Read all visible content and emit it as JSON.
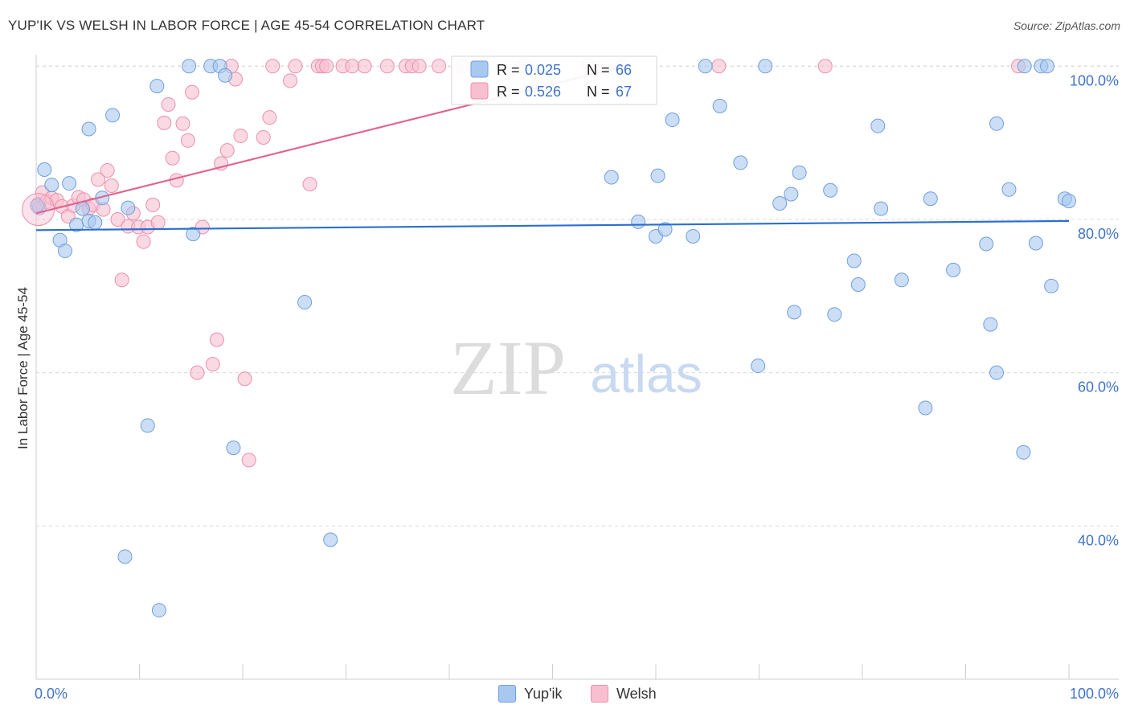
{
  "header": {
    "title": "YUP'IK VS WELSH IN LABOR FORCE | AGE 45-54 CORRELATION CHART",
    "source": "Source: ZipAtlas.com"
  },
  "watermark": {
    "zip": "ZIP",
    "atlas": "atlas"
  },
  "colors": {
    "yupik_fill": "#a9c8f0",
    "yupik_stroke": "#6f9fdc",
    "yupik_line": "#2a6fce",
    "welsh_fill": "#f8bfd0",
    "welsh_stroke": "#ec8fab",
    "welsh_line": "#e06690",
    "grid": "#d8d8d8",
    "axis_text": "#3f74c8"
  },
  "chart_data": {
    "type": "scatter",
    "title": "YUP'IK VS WELSH IN LABOR FORCE | AGE 45-54 CORRELATION CHART",
    "xlabel": "",
    "ylabel": "In Labor Force | Age 45-54",
    "xlim": [
      0,
      100
    ],
    "ylim": [
      20,
      101.5
    ],
    "x_tick_labels": [
      "0.0%",
      "100.0%"
    ],
    "y_ticks": [
      40,
      60,
      80,
      100
    ],
    "y_tick_labels": [
      "40.0%",
      "60.0%",
      "80.0%",
      "100.0%"
    ],
    "grid": true,
    "legend_stats": [
      {
        "r_label": "R =",
        "r_value": "0.025",
        "n_label": "N =",
        "n_value": "66"
      },
      {
        "r_label": "R =",
        "r_value": "0.526",
        "n_label": "N =",
        "n_value": "67"
      }
    ],
    "series": [
      {
        "name": "Yup'ik",
        "trend": {
          "x": [
            0,
            100
          ],
          "y": [
            78.6,
            79.8
          ]
        },
        "points": [
          {
            "x": 0.3,
            "y": 81.5
          },
          {
            "x": 0.8,
            "y": 86.5
          },
          {
            "x": 1.5,
            "y": 84.5
          },
          {
            "x": 2.3,
            "y": 77.3
          },
          {
            "x": 2.8,
            "y": 75.9
          },
          {
            "x": 3.2,
            "y": 84.7
          },
          {
            "x": 3.9,
            "y": 79.3
          },
          {
            "x": 4.5,
            "y": 81.4
          },
          {
            "x": 5.1,
            "y": 79.8
          },
          {
            "x": 5.7,
            "y": 79.6
          },
          {
            "x": 5.1,
            "y": 91.8
          },
          {
            "x": 6.4,
            "y": 82.8
          },
          {
            "x": 7.4,
            "y": 93.6
          },
          {
            "x": 8.6,
            "y": 36.0
          },
          {
            "x": 8.9,
            "y": 81.5
          },
          {
            "x": 10.8,
            "y": 53.1
          },
          {
            "x": 11.7,
            "y": 97.4
          },
          {
            "x": 11.9,
            "y": 29.0
          },
          {
            "x": 14.8,
            "y": 100.0
          },
          {
            "x": 15.2,
            "y": 78.1
          },
          {
            "x": 16.9,
            "y": 100.0
          },
          {
            "x": 17.8,
            "y": 100.0
          },
          {
            "x": 18.3,
            "y": 98.8
          },
          {
            "x": 19.1,
            "y": 50.2
          },
          {
            "x": 26.0,
            "y": 69.2
          },
          {
            "x": 28.5,
            "y": 38.2
          },
          {
            "x": 55.7,
            "y": 85.5
          },
          {
            "x": 58.3,
            "y": 79.7
          },
          {
            "x": 60.0,
            "y": 77.8
          },
          {
            "x": 60.2,
            "y": 85.7
          },
          {
            "x": 60.9,
            "y": 78.7
          },
          {
            "x": 61.6,
            "y": 93.0
          },
          {
            "x": 63.6,
            "y": 77.8
          },
          {
            "x": 64.8,
            "y": 100.0
          },
          {
            "x": 66.2,
            "y": 94.8
          },
          {
            "x": 68.2,
            "y": 87.4
          },
          {
            "x": 69.9,
            "y": 60.9
          },
          {
            "x": 70.6,
            "y": 100.0
          },
          {
            "x": 72.0,
            "y": 82.1
          },
          {
            "x": 73.1,
            "y": 83.3
          },
          {
            "x": 73.4,
            "y": 67.9
          },
          {
            "x": 73.9,
            "y": 86.1
          },
          {
            "x": 76.9,
            "y": 83.8
          },
          {
            "x": 77.3,
            "y": 67.6
          },
          {
            "x": 79.2,
            "y": 74.6
          },
          {
            "x": 79.6,
            "y": 71.5
          },
          {
            "x": 81.8,
            "y": 81.4
          },
          {
            "x": 81.5,
            "y": 92.2
          },
          {
            "x": 83.8,
            "y": 72.1
          },
          {
            "x": 86.1,
            "y": 55.4
          },
          {
            "x": 86.6,
            "y": 82.7
          },
          {
            "x": 88.8,
            "y": 73.4
          },
          {
            "x": 92.0,
            "y": 76.8
          },
          {
            "x": 92.4,
            "y": 66.3
          },
          {
            "x": 93.0,
            "y": 92.5
          },
          {
            "x": 93.0,
            "y": 60.0
          },
          {
            "x": 94.2,
            "y": 83.9
          },
          {
            "x": 95.6,
            "y": 49.6
          },
          {
            "x": 95.7,
            "y": 100.0
          },
          {
            "x": 96.8,
            "y": 76.9
          },
          {
            "x": 97.3,
            "y": 100.0
          },
          {
            "x": 97.9,
            "y": 100.0
          },
          {
            "x": 98.3,
            "y": 71.3
          },
          {
            "x": 99.6,
            "y": 82.7
          },
          {
            "x": 100.0,
            "y": 82.4
          },
          {
            "x": 0.1,
            "y": 81.8
          }
        ]
      },
      {
        "name": "Welsh",
        "trend": {
          "x": [
            0,
            57
          ],
          "y": [
            80.8,
            100.0
          ]
        },
        "points": [
          {
            "x": 0.2,
            "y": 82.0
          },
          {
            "x": 0.6,
            "y": 83.5
          },
          {
            "x": 1.0,
            "y": 82.3
          },
          {
            "x": 1.5,
            "y": 82.8
          },
          {
            "x": 2.0,
            "y": 82.5
          },
          {
            "x": 2.5,
            "y": 81.7
          },
          {
            "x": 3.1,
            "y": 80.4
          },
          {
            "x": 3.6,
            "y": 81.8
          },
          {
            "x": 4.1,
            "y": 82.9
          },
          {
            "x": 4.6,
            "y": 82.6
          },
          {
            "x": 5.1,
            "y": 81.4
          },
          {
            "x": 5.5,
            "y": 81.9
          },
          {
            "x": 6.0,
            "y": 85.2
          },
          {
            "x": 6.5,
            "y": 81.3
          },
          {
            "x": 6.9,
            "y": 86.4
          },
          {
            "x": 7.3,
            "y": 84.4
          },
          {
            "x": 7.9,
            "y": 80.0
          },
          {
            "x": 8.3,
            "y": 72.1
          },
          {
            "x": 8.9,
            "y": 79.1
          },
          {
            "x": 9.4,
            "y": 80.8
          },
          {
            "x": 9.9,
            "y": 79.0
          },
          {
            "x": 10.4,
            "y": 77.1
          },
          {
            "x": 10.8,
            "y": 79.0
          },
          {
            "x": 11.3,
            "y": 81.9
          },
          {
            "x": 11.8,
            "y": 79.6
          },
          {
            "x": 12.4,
            "y": 92.6
          },
          {
            "x": 12.8,
            "y": 95.0
          },
          {
            "x": 13.2,
            "y": 88.0
          },
          {
            "x": 13.6,
            "y": 85.1
          },
          {
            "x": 14.2,
            "y": 92.5
          },
          {
            "x": 14.7,
            "y": 90.3
          },
          {
            "x": 15.1,
            "y": 96.6
          },
          {
            "x": 15.6,
            "y": 60.0
          },
          {
            "x": 16.1,
            "y": 79.0
          },
          {
            "x": 17.1,
            "y": 61.1
          },
          {
            "x": 17.5,
            "y": 64.3
          },
          {
            "x": 17.9,
            "y": 87.3
          },
          {
            "x": 18.5,
            "y": 89.0
          },
          {
            "x": 18.9,
            "y": 100.0
          },
          {
            "x": 19.3,
            "y": 98.3
          },
          {
            "x": 19.8,
            "y": 90.9
          },
          {
            "x": 20.2,
            "y": 59.2
          },
          {
            "x": 20.6,
            "y": 48.6
          },
          {
            "x": 22.0,
            "y": 90.7
          },
          {
            "x": 22.6,
            "y": 93.3
          },
          {
            "x": 22.9,
            "y": 100.0
          },
          {
            "x": 24.6,
            "y": 98.1
          },
          {
            "x": 25.1,
            "y": 100.0
          },
          {
            "x": 26.5,
            "y": 84.6
          },
          {
            "x": 27.3,
            "y": 100.0
          },
          {
            "x": 27.7,
            "y": 100.0
          },
          {
            "x": 28.1,
            "y": 100.0
          },
          {
            "x": 29.7,
            "y": 100.0
          },
          {
            "x": 30.6,
            "y": 100.0
          },
          {
            "x": 31.8,
            "y": 100.0
          },
          {
            "x": 34.0,
            "y": 100.0
          },
          {
            "x": 35.8,
            "y": 100.0
          },
          {
            "x": 36.4,
            "y": 100.0
          },
          {
            "x": 37.1,
            "y": 100.0
          },
          {
            "x": 39.0,
            "y": 100.0
          },
          {
            "x": 41.3,
            "y": 100.0
          },
          {
            "x": 47.3,
            "y": 100.0
          },
          {
            "x": 53.5,
            "y": 100.0
          },
          {
            "x": 56.8,
            "y": 100.0
          },
          {
            "x": 66.1,
            "y": 100.0
          },
          {
            "x": 76.4,
            "y": 100.0
          },
          {
            "x": 95.1,
            "y": 100.0
          }
        ]
      }
    ]
  }
}
